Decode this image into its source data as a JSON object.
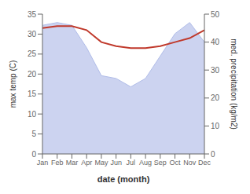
{
  "chart_data": {
    "type": "line",
    "xlabel": "date (month)",
    "ylabel": "max temp (C)",
    "y2label": "med. precipitation (kg/m2)",
    "categories": [
      "Jan",
      "Feb",
      "Mar",
      "Apr",
      "May",
      "Jun",
      "Jul",
      "Aug",
      "Sep",
      "Oct",
      "Nov",
      "Dec"
    ],
    "series": [
      {
        "type": "area",
        "axis": "y2",
        "color": "#b0bce8",
        "values": [
          46,
          47,
          46,
          38,
          28,
          27,
          24,
          27,
          35,
          43,
          47,
          40
        ]
      },
      {
        "type": "line",
        "color": "#c0392b",
        "values": [
          31.5,
          32.0,
          32.0,
          31.0,
          28.0,
          27.0,
          26.5,
          26.5,
          27.0,
          28.0,
          29.0,
          31.0
        ]
      }
    ],
    "ylim": [
      0,
      35
    ],
    "yticks": [
      0,
      5,
      10,
      15,
      20,
      25,
      30,
      35
    ],
    "y2lim": [
      0,
      50
    ],
    "y2ticks": [
      0,
      10,
      20,
      30,
      40,
      50
    ]
  }
}
